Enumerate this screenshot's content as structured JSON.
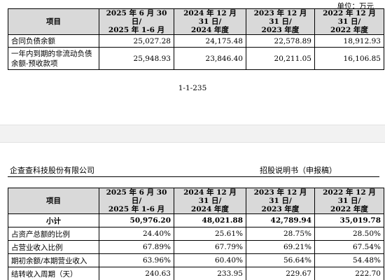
{
  "unit_label": "单位：万元",
  "top_table": {
    "headers": [
      "项目",
      "2025 年 6 月 30 日/\n2025 年 1-6 月",
      "2024 年 12 月 31 日/\n2024 年度",
      "2023 年 12 月 31 日/\n2023 年度",
      "2022 年 12 月 31 日/\n2022 年度"
    ],
    "rows": [
      {
        "label": "合同负债余额",
        "values": [
          "25,027.28",
          "24,175.48",
          "22,578.89",
          "18,912.93"
        ]
      },
      {
        "label": "一年内到期的非流动负债余额-预收款项",
        "values": [
          "25,948.93",
          "23,846.40",
          "20,211.05",
          "16,106.85"
        ]
      }
    ]
  },
  "page_number": "1-1-235",
  "page_header": {
    "company": "企查查科技股份有限公司",
    "doc_type": "招股说明书（申报稿）"
  },
  "bottom_table": {
    "headers": [
      "项目",
      "2025 年 6 月 30 日/\n2025 年 1-6 月",
      "2024 年 12 月 31 日/\n2024 年度",
      "2023 年 12 月 31 日/\n2023 年度",
      "2022 年 12 月 31 日/\n2022 年度"
    ],
    "rows": [
      {
        "label": "小计",
        "values": [
          "50,976.20",
          "48,021.88",
          "42,789.94",
          "35,019.78"
        ]
      },
      {
        "label": "占资产总额的比例",
        "values": [
          "24.40%",
          "25.61%",
          "28.75%",
          "28.50%"
        ]
      },
      {
        "label": "占营业收入比例",
        "values": [
          "67.89%",
          "67.79%",
          "69.21%",
          "67.54%"
        ]
      },
      {
        "label": "期初余额/本期营业收入",
        "values": [
          "63.96%",
          "60.40%",
          "56.64%",
          "54.48%"
        ]
      },
      {
        "label": "结转收入周期（天）",
        "values": [
          "240.63",
          "233.95",
          "229.67",
          "222.70"
        ]
      }
    ]
  }
}
